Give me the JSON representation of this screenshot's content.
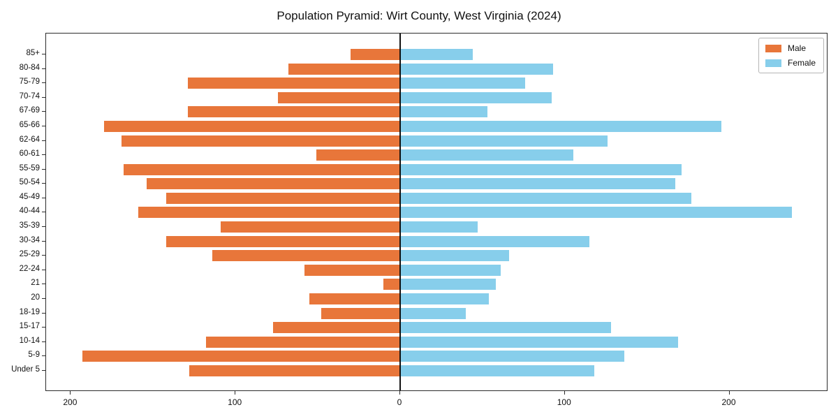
{
  "title": "Population Pyramid: Wirt County, West Virginia (2024)",
  "legend": {
    "male_label": "Male",
    "female_label": "Female"
  },
  "colors": {
    "male": "#E8763A",
    "female": "#87CEEB",
    "axis": "#2b2b2b",
    "zero_line": "#111111",
    "text": "#111111"
  },
  "chart_data": {
    "type": "bar",
    "orientation": "horizontal-pyramid",
    "title": "Population Pyramid: Wirt County, West Virginia (2024)",
    "categories_top_to_bottom": [
      "85+",
      "80-84",
      "75-79",
      "70-74",
      "67-69",
      "65-66",
      "62-64",
      "60-61",
      "55-59",
      "50-54",
      "45-49",
      "40-44",
      "35-39",
      "30-34",
      "25-29",
      "22-24",
      "21",
      "20",
      "18-19",
      "15-17",
      "10-14",
      "5-9",
      "Under 5"
    ],
    "series": [
      {
        "name": "Male",
        "side": "left",
        "color": "#E8763A",
        "values": [
          30,
          68,
          129,
          74,
          129,
          180,
          169,
          51,
          168,
          154,
          142,
          159,
          109,
          142,
          114,
          58,
          10,
          55,
          48,
          77,
          118,
          193,
          128
        ]
      },
      {
        "name": "Female",
        "side": "right",
        "color": "#87CEEB",
        "values": [
          44,
          93,
          76,
          92,
          53,
          195,
          126,
          105,
          171,
          167,
          177,
          238,
          47,
          115,
          66,
          61,
          58,
          54,
          40,
          128,
          169,
          136,
          118
        ]
      }
    ],
    "xlabel": "",
    "ylabel": "",
    "xlim": [
      -215,
      260
    ],
    "x_ticks": {
      "values": [
        -200,
        -100,
        0,
        100,
        200
      ],
      "labels": [
        "200",
        "100",
        "0",
        "100",
        "200"
      ]
    },
    "grid": false,
    "legend_position": "upper right"
  }
}
